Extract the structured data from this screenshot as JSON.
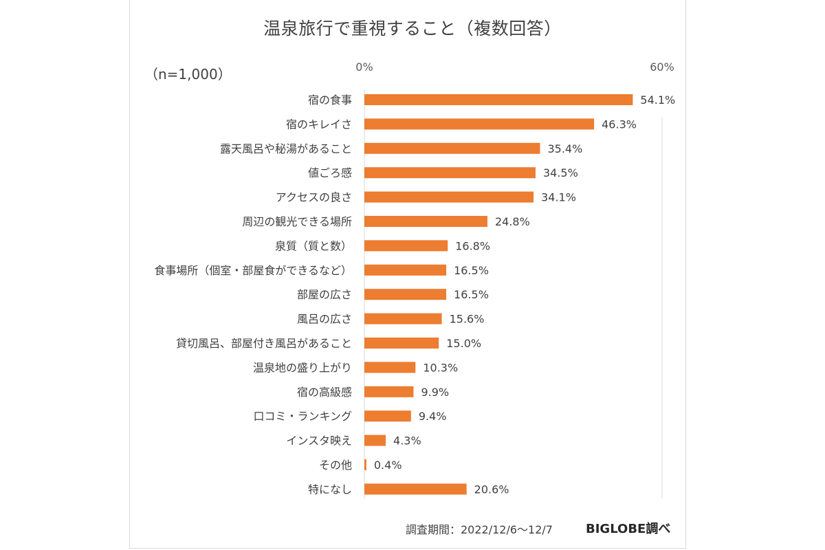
{
  "chart_data": {
    "type": "bar",
    "orientation": "horizontal",
    "title": "温泉旅行で重視すること（複数回答）",
    "sample_note": "（n=1,000）",
    "xlim": [
      0,
      60
    ],
    "xticks": [
      "0%",
      "60%"
    ],
    "grid": false,
    "bar_color": "#ed7d31",
    "categories": [
      "宿の食事",
      "宿のキレイさ",
      "露天風呂や秘湯があること",
      "値ごろ感",
      "アクセスの良さ",
      "周辺の観光できる場所",
      "泉質（質と数）",
      "食事場所（個室・部屋食ができるなど）",
      "部屋の広さ",
      "風呂の広さ",
      "貸切風呂、部屋付き風呂があること",
      "温泉地の盛り上がり",
      "宿の高級感",
      "口コミ・ランキング",
      "インスタ映え",
      "その他",
      "特になし"
    ],
    "values": [
      54.1,
      46.3,
      35.4,
      34.5,
      34.1,
      24.8,
      16.8,
      16.5,
      16.5,
      15.6,
      15.0,
      10.3,
      9.9,
      9.4,
      4.3,
      0.4,
      20.6
    ],
    "value_labels": [
      "54.1%",
      "46.3%",
      "35.4%",
      "34.5%",
      "34.1%",
      "24.8%",
      "16.8%",
      "16.5%",
      "16.5%",
      "15.6%",
      "15.0%",
      "10.3%",
      "9.9%",
      "9.4%",
      "4.3%",
      "0.4%",
      "20.6%"
    ]
  },
  "footer": {
    "period": "調査期間：2022/12/6～12/7",
    "source": "BIGLOBE調べ"
  }
}
